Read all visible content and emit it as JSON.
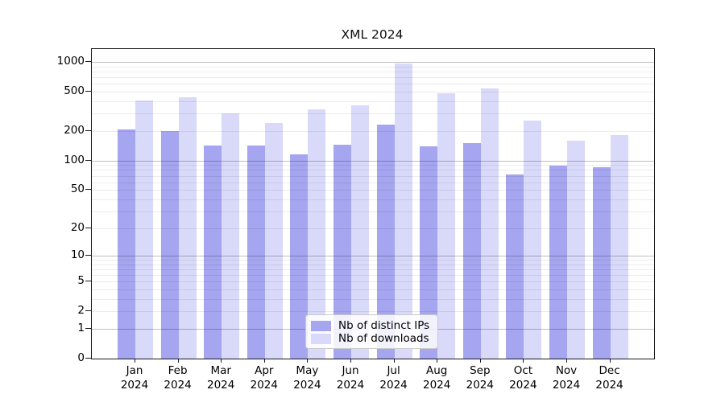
{
  "chart_data": {
    "type": "bar",
    "title": "XML 2024",
    "scale": "log1p",
    "xlabel": "",
    "ylabel": "",
    "categories": [
      "Jan",
      "Feb",
      "Mar",
      "Apr",
      "May",
      "Jun",
      "Jul",
      "Aug",
      "Sep",
      "Oct",
      "Nov",
      "Dec"
    ],
    "year_label": "2024",
    "series": [
      {
        "name": "Nb of distinct IPs",
        "color": "#a5a5f0",
        "values": [
          207,
          199,
          142,
          143,
          116,
          146,
          232,
          140,
          151,
          72,
          88,
          86
        ]
      },
      {
        "name": "Nb of downloads",
        "color": "#d9d9fa",
        "values": [
          412,
          440,
          300,
          242,
          335,
          368,
          968,
          486,
          540,
          256,
          158,
          183
        ]
      }
    ],
    "yticks": [
      0,
      1,
      2,
      5,
      10,
      20,
      50,
      100,
      200,
      500,
      1000
    ],
    "major_gridlines": [
      1,
      10,
      100,
      1000
    ],
    "minor_gridlines": [
      2,
      3,
      4,
      5,
      6,
      7,
      8,
      9,
      20,
      30,
      40,
      50,
      60,
      70,
      80,
      90,
      200,
      300,
      400,
      500,
      600,
      700,
      800,
      900
    ],
    "ylim": [
      0,
      1355
    ],
    "grid": true,
    "legend_position": "lower center"
  }
}
